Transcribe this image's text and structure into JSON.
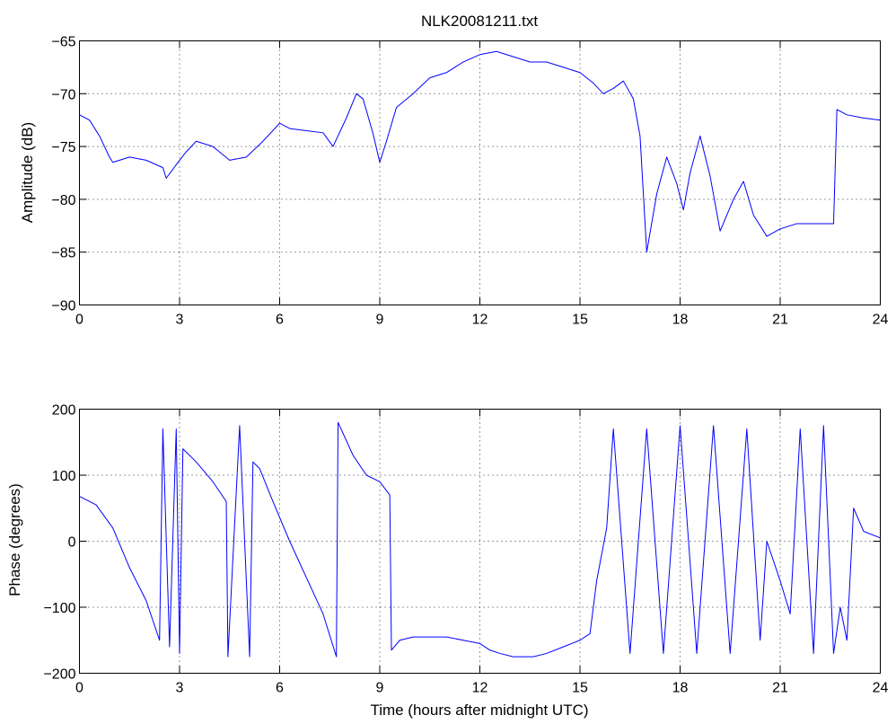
{
  "chart_data": [
    {
      "type": "line",
      "title": "NLK20081211.txt",
      "xlabel": "",
      "ylabel": "Amplitude (dB)",
      "xlim": [
        0,
        24
      ],
      "ylim": [
        -90,
        -65
      ],
      "xticks": [
        "0",
        "3",
        "6",
        "9",
        "12",
        "15",
        "18",
        "21",
        "24"
      ],
      "yticks": [
        "−65",
        "−70",
        "−75",
        "−80",
        "−85",
        "−90"
      ],
      "grid": true,
      "series": [
        {
          "color": "#0000ff",
          "x": [
            0,
            0.3,
            0.6,
            0.9,
            1.0,
            1.5,
            2.0,
            2.5,
            2.6,
            3.0,
            3.2,
            3.5,
            4.0,
            4.5,
            5.0,
            5.5,
            6.0,
            6.3,
            6.8,
            7.3,
            7.6,
            8.0,
            8.3,
            8.5,
            8.8,
            9.0,
            9.2,
            9.5,
            10.0,
            10.5,
            11.0,
            11.5,
            12.0,
            12.5,
            13.0,
            13.5,
            14.0,
            14.5,
            15.0,
            15.4,
            15.7,
            16.0,
            16.3,
            16.6,
            16.8,
            17.0,
            17.3,
            17.6,
            17.9,
            18.1,
            18.3,
            18.6,
            18.9,
            19.2,
            19.6,
            19.9,
            20.2,
            20.6,
            21.0,
            21.5,
            22.0,
            22.6,
            22.7,
            23.0,
            23.5,
            24.0
          ],
          "y": [
            -72.0,
            -72.5,
            -74.0,
            -76.0,
            -76.5,
            -76.0,
            -76.3,
            -77.0,
            -78.0,
            -76.3,
            -75.5,
            -74.5,
            -75.0,
            -76.3,
            -76.0,
            -74.5,
            -72.8,
            -73.3,
            -73.5,
            -73.7,
            -75.0,
            -72.3,
            -70.0,
            -70.5,
            -73.8,
            -76.5,
            -74.5,
            -71.3,
            -70.0,
            -68.5,
            -68.0,
            -67.0,
            -66.3,
            -66.0,
            -66.5,
            -67.0,
            -67.0,
            -67.5,
            -68.0,
            -69.0,
            -70.0,
            -69.5,
            -68.8,
            -70.5,
            -74.0,
            -85.0,
            -79.5,
            -76.0,
            -78.5,
            -81.0,
            -77.5,
            -74.0,
            -77.8,
            -83.0,
            -80.0,
            -78.3,
            -81.5,
            -83.5,
            -82.8,
            -82.3,
            -82.3,
            -82.3,
            -71.5,
            -72.0,
            -72.3,
            -72.5
          ]
        }
      ]
    },
    {
      "type": "line",
      "title": "",
      "xlabel": "Time (hours after midnight UTC)",
      "ylabel": "Phase (degrees)",
      "xlim": [
        0,
        24
      ],
      "ylim": [
        -200,
        200
      ],
      "xticks": [
        "0",
        "3",
        "6",
        "9",
        "12",
        "15",
        "18",
        "21",
        "24"
      ],
      "yticks": [
        "200",
        "100",
        "0",
        "−100",
        "−200"
      ],
      "grid": true,
      "series": [
        {
          "color": "#0000ff",
          "x": [
            0,
            0.5,
            1.0,
            1.5,
            2.0,
            2.4,
            2.5,
            2.7,
            2.9,
            3.0,
            3.1,
            3.5,
            4.0,
            4.4,
            4.45,
            4.8,
            5.1,
            5.2,
            5.4,
            5.8,
            6.3,
            6.8,
            7.3,
            7.7,
            7.75,
            8.2,
            8.6,
            9.0,
            9.3,
            9.35,
            9.6,
            10.0,
            10.5,
            11.0,
            11.5,
            12.0,
            12.3,
            12.6,
            13.0,
            13.3,
            13.6,
            14.0,
            14.5,
            15.0,
            15.3,
            15.5,
            15.8,
            16.0,
            16.5,
            17.0,
            17.5,
            18.0,
            18.5,
            19.0,
            19.5,
            20.0,
            20.4,
            20.6,
            21.0,
            21.3,
            21.6,
            22.0,
            22.3,
            22.6,
            22.8,
            23.0,
            23.2,
            23.5,
            24.0
          ],
          "y": [
            68,
            55,
            20,
            -40,
            -90,
            -150,
            170,
            -160,
            170,
            -170,
            140,
            120,
            90,
            60,
            -175,
            175,
            -175,
            120,
            110,
            60,
            0,
            -55,
            -110,
            -175,
            180,
            130,
            100,
            90,
            70,
            -165,
            -150,
            -145,
            -145,
            -145,
            -150,
            -155,
            -165,
            -170,
            -175,
            -175,
            -175,
            -170,
            -160,
            -150,
            -140,
            -60,
            20,
            170,
            -170,
            170,
            -170,
            175,
            -170,
            175,
            -170,
            170,
            -150,
            0,
            -60,
            -110,
            170,
            -170,
            175,
            -170,
            -100,
            -150,
            50,
            15,
            5
          ]
        }
      ]
    }
  ]
}
